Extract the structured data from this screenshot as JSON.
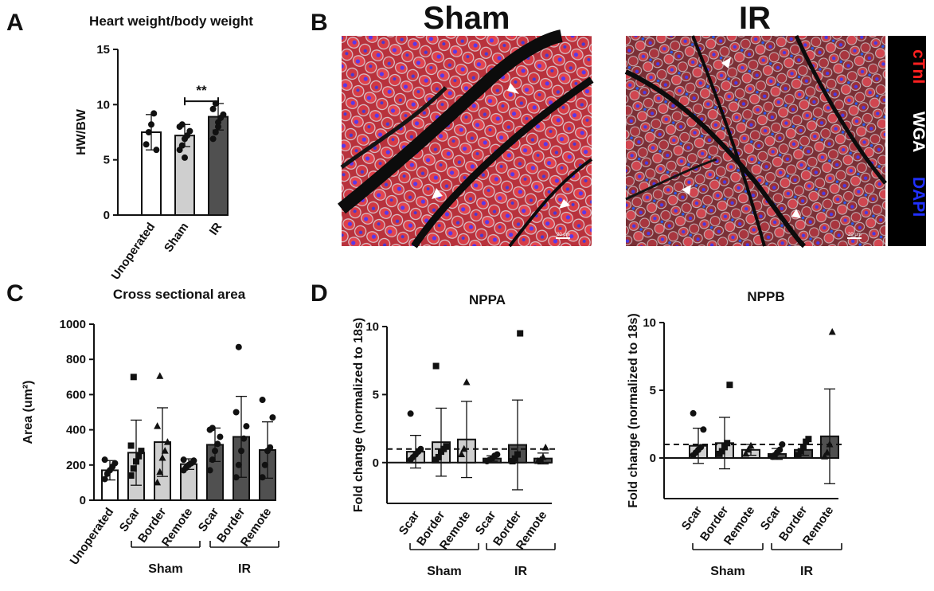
{
  "panels": {
    "A": "A",
    "B": "B",
    "C": "C",
    "D": "D"
  },
  "colors": {
    "unoperated": "#ffffff",
    "sham": "#cfcfcf",
    "ir": "#505050",
    "stroke": "#111111"
  },
  "images": {
    "sham_title": "Sham",
    "ir_title": "IR",
    "scale_bar": "20 μm",
    "legend": [
      {
        "label": "cTnI",
        "color": "#ff2020"
      },
      {
        "label": "WGA",
        "color": "#ffffff"
      },
      {
        "label": "DAPI",
        "color": "#2030ff"
      }
    ]
  },
  "chart_data": [
    {
      "id": "A",
      "type": "bar",
      "title": "Heart weight/body weight",
      "ylabel": "HW/BW",
      "ylim": [
        0,
        15
      ],
      "yticks": [
        "0",
        "5",
        "10",
        "15"
      ],
      "categories": [
        "Unoperated",
        "Sham",
        "IR"
      ],
      "groups": [
        "unoperated",
        "sham",
        "ir"
      ],
      "means": [
        7.5,
        7.2,
        8.9
      ],
      "errors": [
        1.6,
        1.0,
        1.2
      ],
      "points": [
        [
          6.4,
          7.5,
          8.2,
          9.2,
          5.9
        ],
        [
          5.9,
          6.3,
          6.9,
          7.2,
          7.6,
          8.0,
          8.2,
          5.2
        ],
        [
          6.9,
          7.5,
          8.4,
          8.8,
          9.1,
          9.6,
          10.1,
          8.0
        ]
      ],
      "markers": [
        "circle",
        "circle",
        "circle"
      ],
      "significance": {
        "label": "**",
        "from": 1,
        "to": 2,
        "y": 10.3
      },
      "ref_line": null
    },
    {
      "id": "C",
      "type": "bar",
      "title": "Cross sectional area",
      "ylabel": "Area (um²)",
      "ylim": [
        0,
        1000
      ],
      "yticks": [
        "0",
        "200",
        "400",
        "600",
        "800",
        "1000"
      ],
      "categories": [
        "Unoperated",
        "Scar",
        "Border",
        "Remote",
        "Scar",
        "Border",
        "Remote"
      ],
      "groups": [
        "unoperated",
        "sham",
        "sham",
        "sham",
        "ir",
        "ir",
        "ir"
      ],
      "means": [
        170,
        270,
        330,
        205,
        315,
        360,
        285
      ],
      "errors": [
        55,
        185,
        195,
        30,
        95,
        230,
        160
      ],
      "points": [
        [
          120,
          150,
          170,
          190,
          210,
          230
        ],
        [
          140,
          180,
          220,
          250,
          280,
          310,
          700
        ],
        [
          100,
          160,
          240,
          280,
          330,
          420,
          705
        ],
        [
          170,
          185,
          200,
          210,
          225,
          230
        ],
        [
          170,
          230,
          280,
          320,
          360,
          400,
          410
        ],
        [
          130,
          200,
          280,
          350,
          420,
          500,
          870
        ],
        [
          130,
          200,
          280,
          300,
          470,
          570
        ]
      ],
      "markers": [
        "circle",
        "square",
        "triangle",
        "circle",
        "circle",
        "circle",
        "circle"
      ],
      "group_labels": [
        {
          "label": "Sham",
          "from": 1,
          "to": 3
        },
        {
          "label": "IR",
          "from": 4,
          "to": 6
        }
      ],
      "ref_line": null
    },
    {
      "id": "D1",
      "type": "bar",
      "title": "NPPA",
      "ylabel": "Fold change (normalized to 18s)",
      "ylim": [
        -3,
        10
      ],
      "yticks": [
        "0",
        "5",
        "10"
      ],
      "categories": [
        "Scar",
        "Border",
        "Remote",
        "Scar",
        "Border",
        "Remote"
      ],
      "groups": [
        "sham",
        "sham",
        "sham",
        "ir",
        "ir",
        "ir"
      ],
      "means": [
        0.8,
        1.5,
        1.7,
        0.3,
        1.3,
        0.3
      ],
      "errors": [
        1.2,
        2.5,
        2.8,
        0.2,
        3.3,
        0.4
      ],
      "points": [
        [
          0.2,
          0.4,
          0.6,
          0.8,
          1.0,
          3.6
        ],
        [
          0.2,
          0.4,
          0.8,
          1.0,
          1.2,
          7.1
        ],
        [
          0.6,
          1.0,
          5.9
        ],
        [
          0.1,
          0.2,
          0.3,
          0.5,
          0.6
        ],
        [
          0.1,
          0.3,
          0.6,
          9.5
        ],
        [
          0.1,
          0.2,
          0.4,
          1.1
        ]
      ],
      "markers": [
        "circle",
        "square",
        "triangle",
        "circle",
        "square",
        "triangle"
      ],
      "group_labels": [
        {
          "label": "Sham",
          "from": 0,
          "to": 2
        },
        {
          "label": "IR",
          "from": 3,
          "to": 5
        }
      ],
      "ref_line": 1
    },
    {
      "id": "D2",
      "type": "bar",
      "title": "NPPB",
      "ylabel": "Fold change (normalized to 18s)",
      "ylim": [
        -3,
        10
      ],
      "yticks": [
        "0",
        "5",
        "10"
      ],
      "categories": [
        "Scar",
        "Border",
        "Remote",
        "Scar",
        "Border",
        "Remote"
      ],
      "groups": [
        "sham",
        "sham",
        "sham",
        "ir",
        "ir",
        "ir"
      ],
      "means": [
        0.9,
        1.1,
        0.6,
        0.3,
        0.6,
        1.6
      ],
      "errors": [
        1.3,
        1.9,
        0.4,
        0.4,
        0.4,
        3.5
      ],
      "points": [
        [
          0.2,
          0.4,
          0.6,
          0.8,
          2.1,
          3.3
        ],
        [
          0.3,
          0.5,
          0.8,
          1.1,
          5.4
        ],
        [
          0.3,
          0.6,
          0.9
        ],
        [
          0.1,
          0.2,
          0.4,
          0.6,
          1.0
        ],
        [
          0.2,
          0.5,
          0.8,
          1.2,
          1.4
        ],
        [
          0.1,
          0.4,
          1.0,
          9.3
        ]
      ],
      "markers": [
        "circle",
        "square",
        "triangle",
        "circle",
        "square",
        "triangle"
      ],
      "group_labels": [
        {
          "label": "Sham",
          "from": 0,
          "to": 2
        },
        {
          "label": "IR",
          "from": 3,
          "to": 5
        }
      ],
      "ref_line": 1
    }
  ]
}
